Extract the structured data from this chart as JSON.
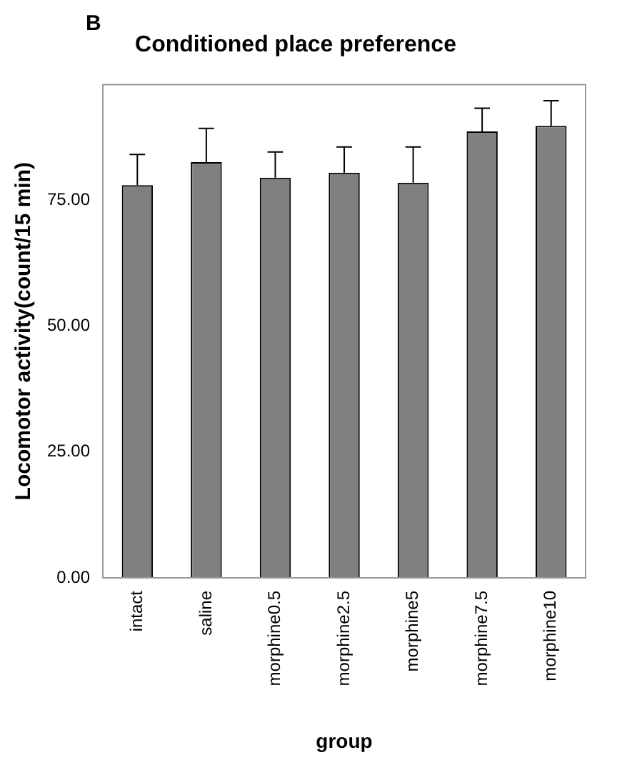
{
  "chart_data": {
    "type": "bar",
    "title": "Conditioned place preference",
    "xlabel": "group",
    "ylabel": "Locomotor activity(count/15 min)",
    "annotations": [
      "B"
    ],
    "categories": [
      "intact",
      "saline",
      "morphine0.5",
      "morphine2.5",
      "morphine5",
      "morphine7.5",
      "morphine10"
    ],
    "values": [
      78.0,
      82.6,
      79.5,
      80.5,
      78.5,
      88.7,
      89.8
    ],
    "errors": [
      [
        78.0,
        84.1
      ],
      [
        82.6,
        89.3
      ],
      [
        79.5,
        84.6
      ],
      [
        80.5,
        85.6
      ],
      [
        78.5,
        85.6
      ],
      [
        88.7,
        93.3
      ],
      [
        89.8,
        94.8
      ]
    ],
    "color": "#808080",
    "ylim": [
      0,
      98
    ],
    "yticks": [
      {
        "value": 0,
        "label": "0.00"
      },
      {
        "value": 25,
        "label": "25.00"
      },
      {
        "value": 50,
        "label": "50.00"
      },
      {
        "value": 75,
        "label": "75.00"
      }
    ],
    "grid": false,
    "legend": false
  }
}
